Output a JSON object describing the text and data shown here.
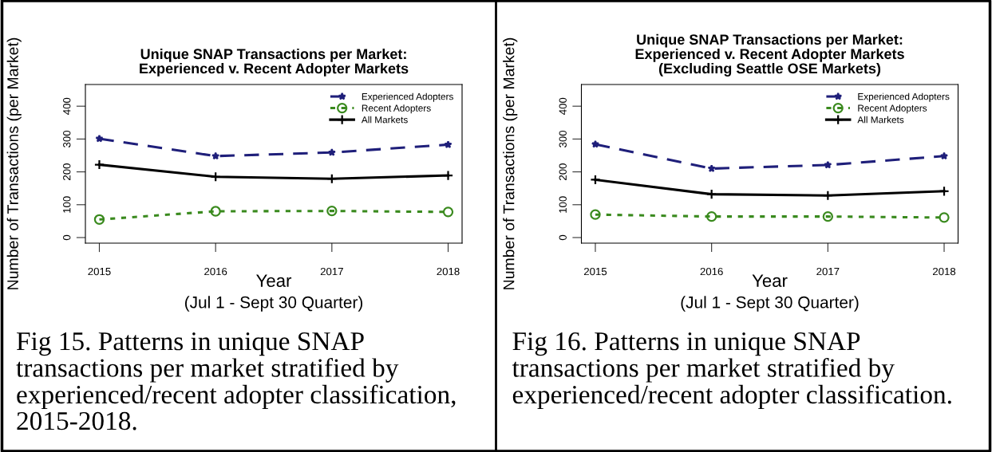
{
  "chart_data": [
    {
      "type": "line",
      "title": "Unique SNAP Transactions per Market:\nExperienced v. Recent Adopter Markets",
      "xlabel": "Year",
      "ylabel": "Number of Transactions (per Market)",
      "x": [
        2015,
        2016,
        2017,
        2018
      ],
      "xlim": [
        2014.88,
        2018.12
      ],
      "xticks": [
        2015,
        2016,
        2017,
        2018
      ],
      "ylim": [
        -17,
        466
      ],
      "yticks": [
        0,
        100,
        200,
        300,
        400
      ],
      "grid": false,
      "legend": "top right",
      "series": [
        {
          "name": "Experienced Adopters",
          "color": "#1f1f7a",
          "marker": "star",
          "line_style": "dashed",
          "values": [
            301,
            248,
            259,
            283
          ]
        },
        {
          "name": "Recent Adopters",
          "color": "#3a8a1e",
          "marker": "circle",
          "line_style": "dotted",
          "values": [
            55,
            80,
            81,
            78
          ]
        },
        {
          "name": "All Markets",
          "color": "#000000",
          "marker": "cross",
          "line_style": "solid",
          "values": [
            222,
            185,
            179,
            189
          ]
        }
      ],
      "annotations": [
        "(Jul 1 - Sept 30 Quarter)",
        "Fig 15. Patterns in unique SNAP transactions per market stratified by experienced/recent adopter classification, 2015-2018."
      ]
    },
    {
      "type": "line",
      "title": "Unique SNAP Transactions per Market:\nExperienced v. Recent Adopter Markets\n(Excluding Seattle OSE Markets)",
      "xlabel": "Year",
      "ylabel": "Number of Transactions (per Market)",
      "x": [
        2015,
        2016,
        2017,
        2018
      ],
      "xlim": [
        2014.88,
        2018.12
      ],
      "xticks": [
        2015,
        2016,
        2017,
        2018
      ],
      "ylim": [
        -17,
        466
      ],
      "yticks": [
        0,
        100,
        200,
        300,
        400
      ],
      "grid": false,
      "legend": "top right",
      "series": [
        {
          "name": "Experienced Adopters",
          "color": "#1f1f7a",
          "marker": "star",
          "line_style": "dashed",
          "values": [
            284,
            210,
            221,
            248
          ]
        },
        {
          "name": "Recent Adopters",
          "color": "#3a8a1e",
          "marker": "circle",
          "line_style": "dotted",
          "values": [
            70,
            64,
            64,
            61
          ]
        },
        {
          "name": "All Markets",
          "color": "#000000",
          "marker": "cross",
          "line_style": "solid",
          "values": [
            176,
            132,
            128,
            141
          ]
        }
      ],
      "annotations": [
        "(Jul 1 - Sept 30 Quarter)",
        "Fig 16. Patterns in unique SNAP transactions per market stratified by experienced/recent adopter classification."
      ]
    }
  ]
}
